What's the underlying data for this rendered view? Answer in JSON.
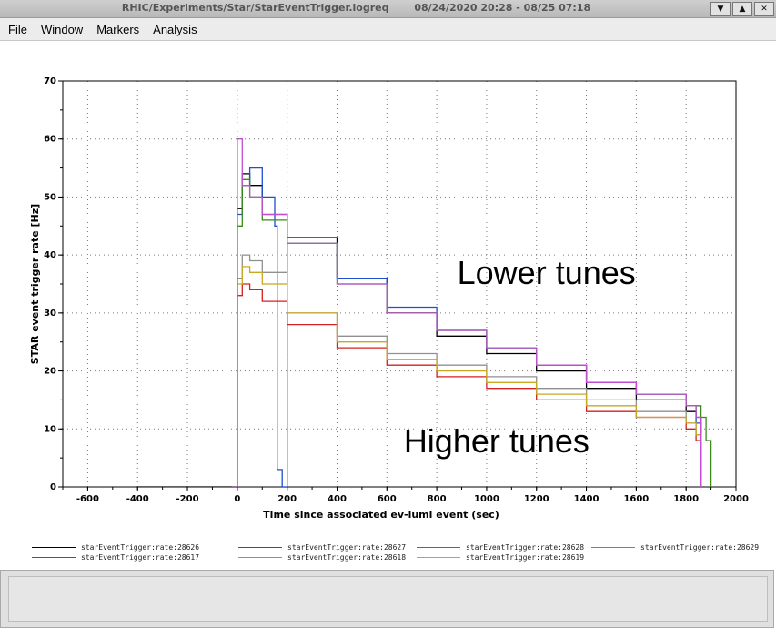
{
  "window": {
    "title_path": "RHIC/Experiments/Star/StarEventTrigger.logreq",
    "title_range": "08/24/2020 20:28 - 08/25 07:18",
    "buttons": [
      "▼",
      "▲",
      "✕"
    ]
  },
  "menu": {
    "items": [
      "File",
      "Window",
      "Markers",
      "Analysis"
    ]
  },
  "colors": {
    "28626": "#000000",
    "28617": "#d42020",
    "28627": "#1f4fd0",
    "28618": "#909090",
    "28628": "#3a8a1a",
    "28619": "#c8a820",
    "28629": "#c050d0"
  },
  "chart_data": {
    "type": "line",
    "xlabel": "Time since associated ev-lumi event (sec)",
    "ylabel": "STAR event trigger rate [Hz]",
    "xlim": [
      -700,
      2000
    ],
    "ylim": [
      0,
      70
    ],
    "x_ticks": [
      -600,
      -400,
      -200,
      0,
      200,
      400,
      600,
      800,
      1000,
      1200,
      1400,
      1600,
      1800,
      2000
    ],
    "y_ticks": [
      0,
      10,
      20,
      30,
      40,
      50,
      60,
      70
    ],
    "grid": true,
    "annotations": [
      {
        "text": "Lower tunes",
        "x": 1240,
        "y": 35
      },
      {
        "text": "Higher tunes",
        "x": 1040,
        "y": 6
      }
    ],
    "series": [
      {
        "name": "starEventTrigger:rate:28626",
        "x": [
          -400,
          -20,
          0,
          20,
          50,
          100,
          200,
          400,
          600,
          800,
          1000,
          1200,
          1400,
          1600,
          1800,
          1840,
          1860
        ],
        "y": [
          0,
          0,
          48,
          54,
          52,
          47,
          43,
          36,
          30,
          26,
          23,
          20,
          17,
          15,
          13,
          12,
          0
        ]
      },
      {
        "name": "starEventTrigger:rate:28617",
        "x": [
          -20,
          0,
          20,
          50,
          100,
          200,
          400,
          600,
          800,
          1000,
          1200,
          1400,
          1600,
          1800,
          1840,
          1860
        ],
        "y": [
          0,
          33,
          35,
          34,
          32,
          28,
          24,
          21,
          19,
          17,
          15,
          13,
          12,
          10,
          8,
          0
        ]
      },
      {
        "name": "starEventTrigger:rate:28627",
        "x": [
          -20,
          0,
          20,
          50,
          100,
          150,
          160,
          180,
          200,
          400,
          600,
          800,
          1000,
          1200,
          1400,
          1600,
          1800,
          1840,
          1860
        ],
        "y": [
          0,
          47,
          52,
          55,
          50,
          45,
          3,
          0,
          42,
          36,
          31,
          27,
          24,
          21,
          18,
          16,
          14,
          11,
          0
        ]
      },
      {
        "name": "starEventTrigger:rate:28618",
        "x": [
          -20,
          0,
          20,
          50,
          100,
          200,
          400,
          600,
          800,
          1000,
          1200,
          1400,
          1600,
          1800,
          1840,
          1860
        ],
        "y": [
          0,
          36,
          40,
          39,
          37,
          30,
          26,
          23,
          21,
          19,
          17,
          15,
          13,
          11,
          9,
          0
        ]
      },
      {
        "name": "starEventTrigger:rate:28628",
        "x": [
          -20,
          0,
          20,
          50,
          100,
          200,
          400,
          600,
          800,
          1000,
          1200,
          1400,
          1600,
          1800,
          1860,
          1880,
          1900
        ],
        "y": [
          0,
          45,
          53,
          50,
          46,
          42,
          35,
          30,
          27,
          24,
          21,
          18,
          16,
          14,
          12,
          8,
          0
        ]
      },
      {
        "name": "starEventTrigger:rate:28619",
        "x": [
          -20,
          0,
          20,
          50,
          100,
          200,
          400,
          600,
          800,
          1000,
          1200,
          1400,
          1600,
          1800,
          1840,
          1860
        ],
        "y": [
          0,
          35,
          38,
          37,
          35,
          30,
          25,
          22,
          20,
          18,
          16,
          14,
          12,
          11,
          9,
          0
        ]
      },
      {
        "name": "starEventTrigger:rate:28629",
        "x": [
          -20,
          0,
          20,
          50,
          100,
          200,
          400,
          600,
          800,
          1000,
          1200,
          1400,
          1600,
          1800,
          1840,
          1860
        ],
        "y": [
          0,
          60,
          52,
          50,
          47,
          42,
          35,
          30,
          27,
          24,
          21,
          18,
          16,
          14,
          12,
          0
        ]
      }
    ]
  }
}
